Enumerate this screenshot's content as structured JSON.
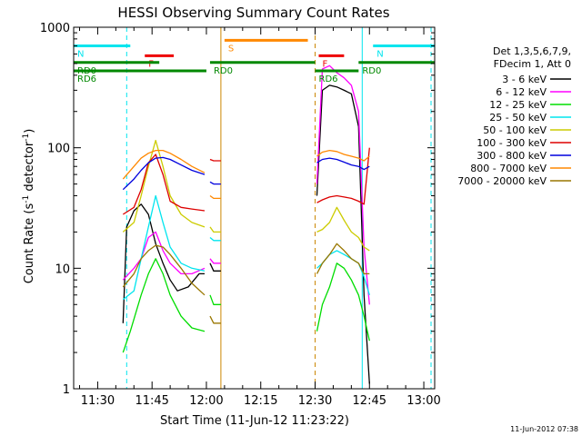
{
  "chart_data": {
    "type": "line",
    "title": "HESSI Observing Summary Count Rates",
    "xlabel": "Start Time (11-Jun-12 11:23:22)",
    "ylabel": "Count Rate (s⁻¹ detector⁻¹)",
    "ylabel_parts": {
      "main": "Count Rate (s",
      "sup1": "-1",
      "mid": " detector",
      "sup2": "-1",
      "end": ")"
    },
    "yscale": "log",
    "ylim": [
      1,
      1000
    ],
    "xlim": [
      "11:23:22",
      "13:03:00"
    ],
    "xtick_labels": [
      "11:30",
      "11:45",
      "12:00",
      "12:15",
      "12:30",
      "12:45",
      "13:00"
    ],
    "ytick_labels": [
      "1",
      "10",
      "100",
      "1000"
    ],
    "grid": false,
    "legend_placement": "right",
    "legend_header": [
      "Det 1,3,5,6,7,9,",
      "FDecim 1, Att 0"
    ],
    "timestamp": "11-Jun-2012 07:38",
    "bands": [
      {
        "name": "3 - 6 keV",
        "color": "#000000"
      },
      {
        "name": "6 - 12 keV",
        "color": "#ff00ff"
      },
      {
        "name": "12 - 25 keV",
        "color": "#00dd00"
      },
      {
        "name": "25 - 50 keV",
        "color": "#00e5ee"
      },
      {
        "name": "50 - 100 keV",
        "color": "#cccc00"
      },
      {
        "name": "100 - 300 keV",
        "color": "#dd0000"
      },
      {
        "name": "300 - 800 keV",
        "color": "#0000dd"
      },
      {
        "name": "800 - 7000 keV",
        "color": "#ff8800"
      },
      {
        "name": "7000 - 20000 keV",
        "color": "#997700"
      }
    ],
    "flags": [
      {
        "label": "N",
        "color": "#00e5ee",
        "level": 700,
        "segments": [
          [
            "11:23:22",
            "11:39:00"
          ],
          [
            "12:46:00",
            "13:03:00"
          ]
        ]
      },
      {
        "label": "F",
        "color": "#ee0000",
        "level": 580,
        "segments": [
          [
            "11:43:00",
            "11:51:00"
          ],
          [
            "12:31:00",
            "12:38:00"
          ]
        ]
      },
      {
        "label": "S",
        "color": "#ff8800",
        "level": 780,
        "segments": [
          [
            "12:05:00",
            "12:28:00"
          ]
        ]
      },
      {
        "label": "RD0",
        "color": "#008800",
        "level": 510,
        "segments": [
          [
            "11:23:22",
            "11:47:00"
          ],
          [
            "12:01:00",
            "12:30:00"
          ],
          [
            "12:42:00",
            "13:03:00"
          ]
        ]
      },
      {
        "label": "RD6",
        "color": "#008800",
        "level": 435,
        "segments": [
          [
            "11:23:22",
            "12:00:00"
          ],
          [
            "12:30:00",
            "12:42:00"
          ]
        ]
      }
    ],
    "markers": [
      {
        "time": "11:23:22",
        "color": "#00e5ee",
        "style": "solid"
      },
      {
        "time": "11:38:00",
        "color": "#00e5ee",
        "style": "dashed"
      },
      {
        "time": "12:04:00",
        "color": "#cc8800",
        "style": "solid"
      },
      {
        "time": "12:30:00",
        "color": "#cc8800",
        "style": "dashed"
      },
      {
        "time": "12:43:00",
        "color": "#00e5ee",
        "style": "solid"
      },
      {
        "time": "13:02:00",
        "color": "#00e5ee",
        "style": "dashed"
      }
    ],
    "series": [
      {
        "name": "3 - 6 keV",
        "segments": [
          [
            [
              "11:37:00",
              3.5
            ],
            [
              "11:38:00",
              22
            ],
            [
              "11:40:00",
              30
            ],
            [
              "11:42:00",
              34
            ],
            [
              "11:44:00",
              28
            ],
            [
              "11:46:00",
              16
            ],
            [
              "11:48:00",
              11
            ],
            [
              "11:50:00",
              8
            ],
            [
              "11:52:00",
              6.5
            ],
            [
              "11:55:00",
              7
            ],
            [
              "11:58:00",
              9
            ],
            [
              "11:59:30",
              9
            ]
          ],
          [
            [
              "12:01:00",
              11
            ],
            [
              "12:02:00",
              9.5
            ],
            [
              "12:04:00",
              9.5
            ]
          ],
          [
            [
              "12:30:30",
              40
            ],
            [
              "12:32:00",
              300
            ],
            [
              "12:34:00",
              330
            ],
            [
              "12:36:00",
              320
            ],
            [
              "12:38:00",
              300
            ],
            [
              "12:40:00",
              280
            ],
            [
              "12:42:00",
              150
            ],
            [
              "12:43:30",
              6
            ],
            [
              "12:45:00",
              1.1
            ]
          ]
        ]
      },
      {
        "name": "6 - 12 keV",
        "segments": [
          [
            [
              "11:37:00",
              8
            ],
            [
              "11:40:00",
              10
            ],
            [
              "11:42:00",
              12
            ],
            [
              "11:44:00",
              18
            ],
            [
              "11:46:00",
              20
            ],
            [
              "11:48:00",
              14
            ],
            [
              "11:50:00",
              11
            ],
            [
              "11:53:00",
              9
            ],
            [
              "11:56:00",
              9
            ],
            [
              "11:59:30",
              10
            ]
          ],
          [
            [
              "12:01:00",
              12
            ],
            [
              "12:02:00",
              11
            ],
            [
              "12:04:00",
              11
            ]
          ],
          [
            [
              "12:30:30",
              50
            ],
            [
              "12:32:00",
              450
            ],
            [
              "12:34:00",
              480
            ],
            [
              "12:36:00",
              420
            ],
            [
              "12:38:00",
              380
            ],
            [
              "12:40:00",
              330
            ],
            [
              "12:42:00",
              200
            ],
            [
              "12:43:30",
              15
            ],
            [
              "12:45:00",
              5
            ]
          ]
        ]
      },
      {
        "name": "12 - 25 keV",
        "segments": [
          [
            [
              "11:37:00",
              2
            ],
            [
              "11:39:00",
              3
            ],
            [
              "11:42:00",
              6
            ],
            [
              "11:44:00",
              9
            ],
            [
              "11:46:00",
              12
            ],
            [
              "11:48:00",
              9
            ],
            [
              "11:50:00",
              6
            ],
            [
              "11:53:00",
              4
            ],
            [
              "11:56:00",
              3.2
            ],
            [
              "11:59:30",
              3
            ]
          ],
          [
            [
              "12:01:00",
              6
            ],
            [
              "12:02:00",
              5
            ],
            [
              "12:04:00",
              5
            ]
          ],
          [
            [
              "12:30:30",
              3
            ],
            [
              "12:32:00",
              5
            ],
            [
              "12:34:00",
              7
            ],
            [
              "12:36:00",
              11
            ],
            [
              "12:38:00",
              10
            ],
            [
              "12:40:00",
              8
            ],
            [
              "12:42:00",
              6
            ],
            [
              "12:43:30",
              4
            ],
            [
              "12:45:00",
              2.5
            ]
          ]
        ]
      },
      {
        "name": "25 - 50 keV",
        "segments": [
          [
            [
              "11:37:00",
              5.5
            ],
            [
              "11:40:00",
              6.5
            ],
            [
              "11:42:00",
              12
            ],
            [
              "11:44:00",
              22
            ],
            [
              "11:46:00",
              40
            ],
            [
              "11:48:00",
              24
            ],
            [
              "11:50:00",
              15
            ],
            [
              "11:53:00",
              11
            ],
            [
              "11:56:00",
              10
            ],
            [
              "11:59:30",
              9.5
            ]
          ],
          [
            [
              "12:01:00",
              18
            ],
            [
              "12:02:00",
              17
            ],
            [
              "12:04:00",
              17
            ]
          ],
          [
            [
              "12:30:30",
              10
            ],
            [
              "12:32:00",
              11
            ],
            [
              "12:34:00",
              13
            ],
            [
              "12:36:00",
              14
            ],
            [
              "12:38:00",
              13
            ],
            [
              "12:40:00",
              12
            ],
            [
              "12:42:00",
              11
            ],
            [
              "12:43:30",
              8.5
            ],
            [
              "12:45:00",
              6
            ]
          ]
        ]
      },
      {
        "name": "50 - 100 keV",
        "segments": [
          [
            [
              "11:37:00",
              20
            ],
            [
              "11:40:00",
              24
            ],
            [
              "11:42:00",
              40
            ],
            [
              "11:44:00",
              70
            ],
            [
              "11:46:00",
              115
            ],
            [
              "11:48:00",
              70
            ],
            [
              "11:50:00",
              40
            ],
            [
              "11:53:00",
              28
            ],
            [
              "11:56:00",
              24
            ],
            [
              "11:59:30",
              22
            ]
          ],
          [
            [
              "12:01:00",
              22
            ],
            [
              "12:02:00",
              20
            ],
            [
              "12:04:00",
              20
            ]
          ],
          [
            [
              "12:30:30",
              20
            ],
            [
              "12:32:00",
              21
            ],
            [
              "12:34:00",
              24
            ],
            [
              "12:36:00",
              32
            ],
            [
              "12:38:00",
              25
            ],
            [
              "12:40:00",
              20
            ],
            [
              "12:42:00",
              18
            ],
            [
              "12:43:30",
              15
            ],
            [
              "12:45:00",
              14
            ]
          ]
        ]
      },
      {
        "name": "100 - 300 keV",
        "segments": [
          [
            [
              "11:37:00",
              28
            ],
            [
              "11:40:00",
              32
            ],
            [
              "11:42:00",
              45
            ],
            [
              "11:44:00",
              75
            ],
            [
              "11:46:00",
              88
            ],
            [
              "11:48:00",
              60
            ],
            [
              "11:50:00",
              36
            ],
            [
              "11:53:00",
              32
            ],
            [
              "11:56:00",
              31
            ],
            [
              "11:59:30",
              30
            ]
          ],
          [
            [
              "12:01:00",
              80
            ],
            [
              "12:02:00",
              78
            ],
            [
              "12:04:00",
              78
            ]
          ],
          [
            [
              "12:30:30",
              35
            ],
            [
              "12:32:00",
              37
            ],
            [
              "12:34:00",
              39
            ],
            [
              "12:36:00",
              40
            ],
            [
              "12:38:00",
              39
            ],
            [
              "12:40:00",
              38
            ],
            [
              "12:42:00",
              36
            ],
            [
              "12:43:30",
              34
            ],
            [
              "12:45:00",
              100
            ]
          ]
        ]
      },
      {
        "name": "300 - 800 keV",
        "segments": [
          [
            [
              "11:37:00",
              45
            ],
            [
              "11:40:00",
              55
            ],
            [
              "11:42:00",
              65
            ],
            [
              "11:44:00",
              75
            ],
            [
              "11:46:00",
              82
            ],
            [
              "11:48:00",
              83
            ],
            [
              "11:50:00",
              80
            ],
            [
              "11:53:00",
              72
            ],
            [
              "11:56:00",
              65
            ],
            [
              "11:59:30",
              60
            ]
          ],
          [
            [
              "12:01:00",
              52
            ],
            [
              "12:02:00",
              50
            ],
            [
              "12:04:00",
              50
            ]
          ],
          [
            [
              "12:30:30",
              75
            ],
            [
              "12:32:00",
              80
            ],
            [
              "12:34:00",
              82
            ],
            [
              "12:36:00",
              80
            ],
            [
              "12:38:00",
              76
            ],
            [
              "12:40:00",
              72
            ],
            [
              "12:42:00",
              70
            ],
            [
              "12:43:30",
              66
            ],
            [
              "12:45:00",
              70
            ]
          ]
        ]
      },
      {
        "name": "800 - 7000 keV",
        "segments": [
          [
            [
              "11:37:00",
              55
            ],
            [
              "11:40:00",
              70
            ],
            [
              "11:42:00",
              82
            ],
            [
              "11:44:00",
              90
            ],
            [
              "11:46:00",
              95
            ],
            [
              "11:48:00",
              95
            ],
            [
              "11:50:00",
              90
            ],
            [
              "11:53:00",
              80
            ],
            [
              "11:56:00",
              70
            ],
            [
              "11:59:30",
              62
            ]
          ],
          [
            [
              "12:01:00",
              40
            ],
            [
              "12:02:00",
              38
            ],
            [
              "12:04:00",
              38
            ]
          ],
          [
            [
              "12:30:30",
              85
            ],
            [
              "12:32:00",
              92
            ],
            [
              "12:34:00",
              95
            ],
            [
              "12:36:00",
              93
            ],
            [
              "12:38:00",
              88
            ],
            [
              "12:40:00",
              85
            ],
            [
              "12:42:00",
              82
            ],
            [
              "12:43:30",
              78
            ],
            [
              "12:45:00",
              85
            ]
          ]
        ]
      },
      {
        "name": "7000 - 20000 keV",
        "segments": [
          [
            [
              "11:37:00",
              7
            ],
            [
              "11:40:00",
              9
            ],
            [
              "11:42:00",
              12
            ],
            [
              "11:44:00",
              14
            ],
            [
              "11:46:00",
              15.5
            ],
            [
              "11:48:00",
              15
            ],
            [
              "11:50:00",
              13
            ],
            [
              "11:53:00",
              10
            ],
            [
              "11:56:00",
              7.5
            ],
            [
              "11:59:30",
              6
            ]
          ],
          [
            [
              "12:01:00",
              4
            ],
            [
              "12:02:00",
              3.5
            ],
            [
              "12:04:00",
              3.5
            ]
          ],
          [
            [
              "12:30:30",
              9
            ],
            [
              "12:32:00",
              11
            ],
            [
              "12:34:00",
              13
            ],
            [
              "12:36:00",
              16
            ],
            [
              "12:38:00",
              14
            ],
            [
              "12:40:00",
              12
            ],
            [
              "12:42:00",
              11
            ],
            [
              "12:43:30",
              9
            ],
            [
              "12:45:00",
              9
            ]
          ]
        ]
      }
    ]
  }
}
